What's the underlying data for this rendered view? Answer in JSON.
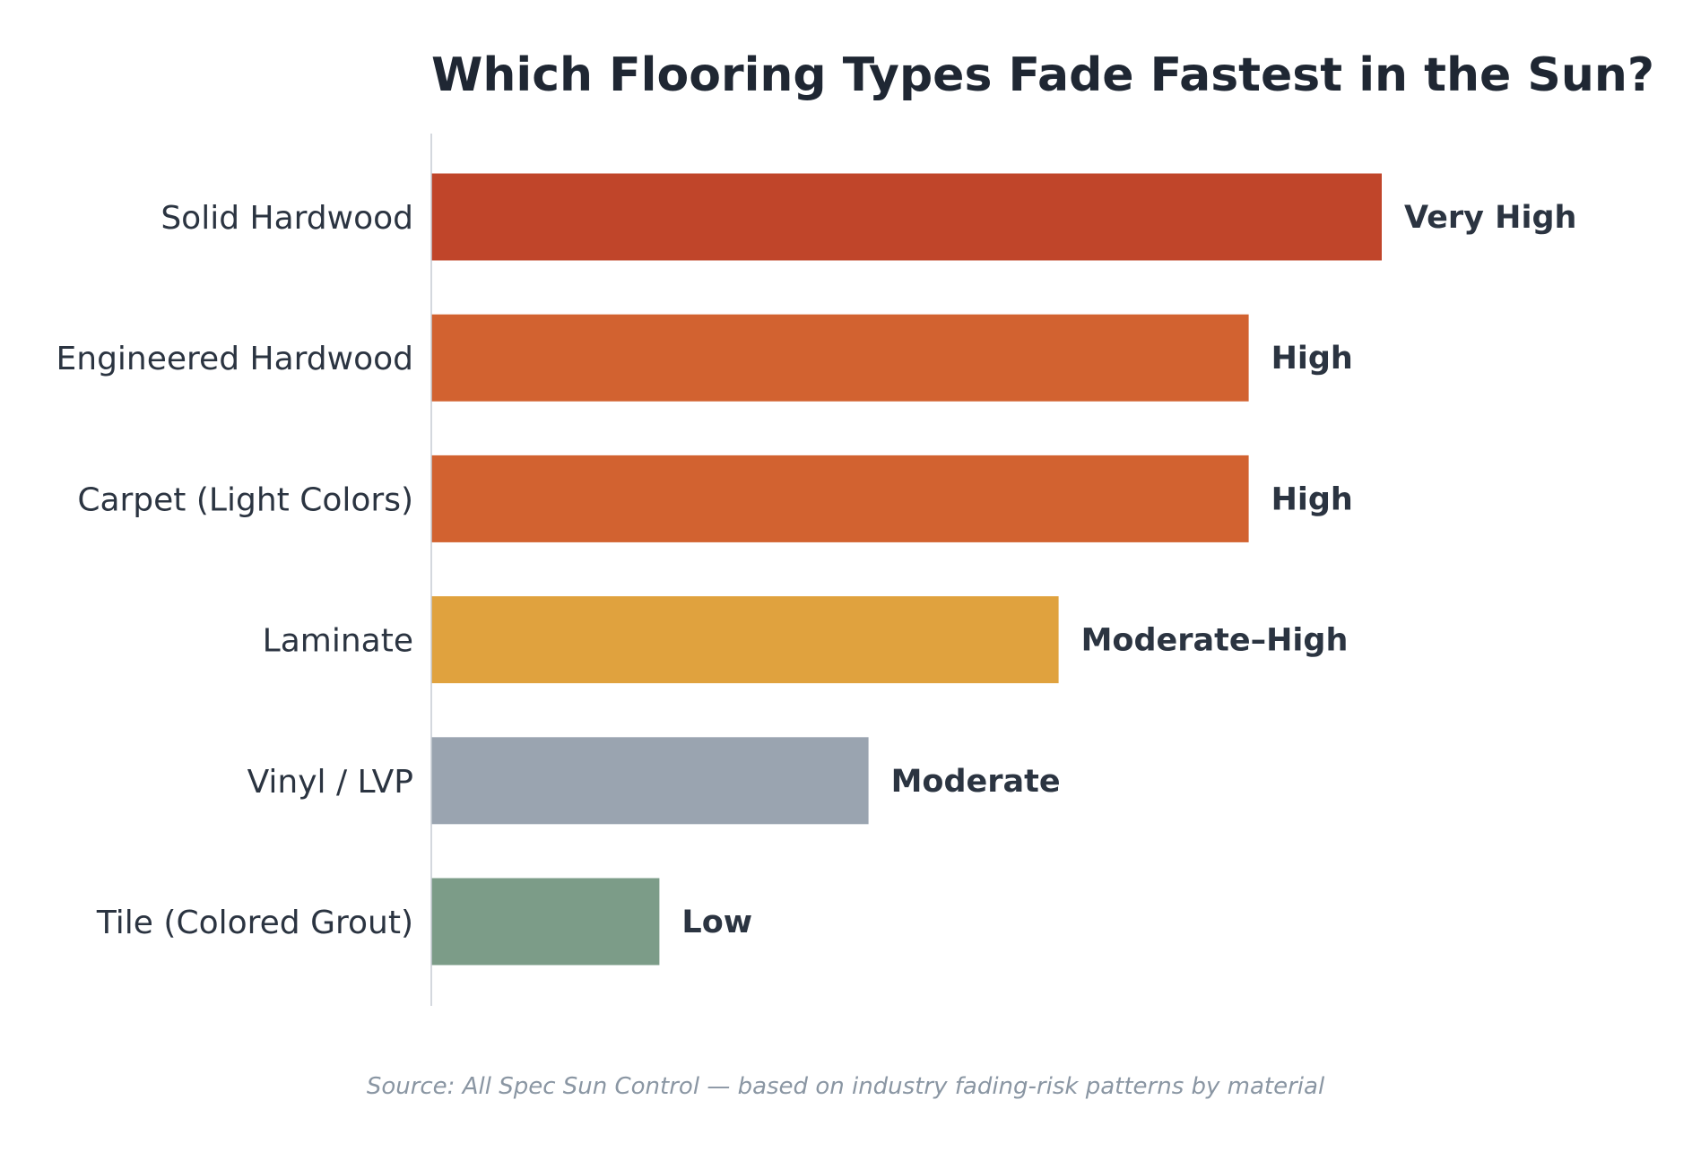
{
  "chart_data": {
    "type": "bar",
    "orientation": "horizontal",
    "title": "Which Flooring Types Fade Fastest in the Sun?",
    "xlabel": "",
    "ylabel": "",
    "xlim": [
      0,
      5
    ],
    "grid": false,
    "legend": "none",
    "categories": [
      "Solid Hardwood",
      "Engineered Hardwood",
      "Carpet (Light Colors)",
      "Laminate",
      "Vinyl / LVP",
      "Tile (Colored Grout)"
    ],
    "values": [
      5,
      4.3,
      4.3,
      3.3,
      2.3,
      1.2
    ],
    "value_labels": [
      "Very High",
      "High",
      "High",
      "Moderate–High",
      "Moderate",
      "Low"
    ],
    "bar_colors": [
      "#c0452a",
      "#d26230",
      "#d26230",
      "#e0a23e",
      "#9aa4b0",
      "#7c9c88"
    ],
    "axis_color": "#c5cbd3",
    "source": "Source: All Spec Sun Control — based on industry fading-risk patterns by material"
  }
}
